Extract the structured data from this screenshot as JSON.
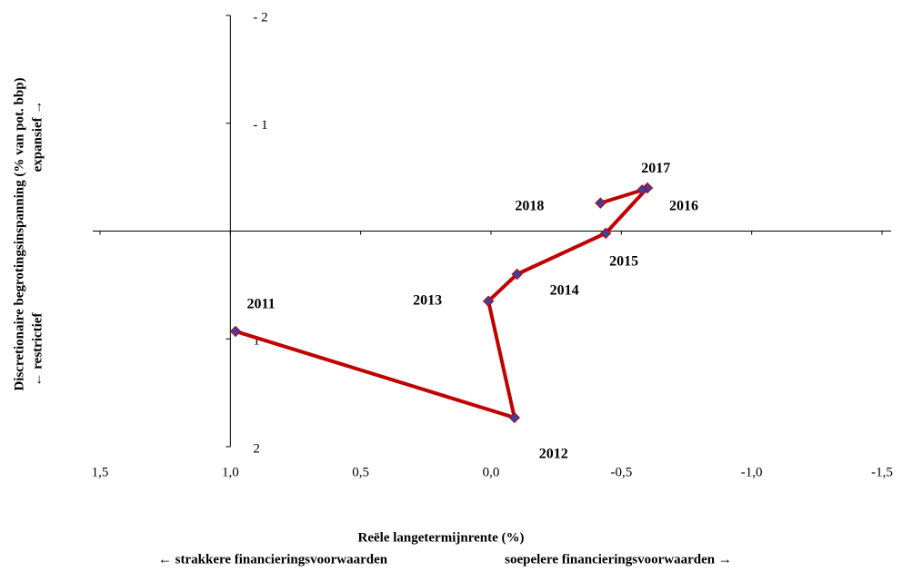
{
  "chart_data": {
    "type": "line",
    "x_title": "Reële langetermijnrente (%)",
    "x_note_left": "← strakkere financieringsvoorwaarden",
    "x_note_right": "soepelere financieringsvoorwaarden →",
    "y_title": "Discretionaire begrotingsinspanning (% van pot. bbp)",
    "y_note_top": "expansief →",
    "y_note_bottom": "← restrictief",
    "x": [
      0.98,
      -0.09,
      0.01,
      -0.1,
      -0.44,
      -0.6,
      -0.58,
      -0.42
    ],
    "values": [
      0.93,
      1.73,
      0.65,
      0.4,
      0.02,
      -0.4,
      -0.38,
      -0.26
    ],
    "point_labels": [
      "2011",
      "2012",
      "2013",
      "2014",
      "2015",
      "2016",
      "2017",
      "2018"
    ],
    "color": "#c00000",
    "marker_color": "#3f3f9f",
    "xlim": [
      1.5,
      -1.5
    ],
    "xticks": [
      {
        "value": 1.5,
        "label": "1,5"
      },
      {
        "value": 1.0,
        "label": "1,0"
      },
      {
        "value": 0.5,
        "label": "0,5"
      },
      {
        "value": 0,
        "label": "0,0"
      },
      {
        "value": -0.5,
        "label": "-0,5"
      },
      {
        "value": -1.0,
        "label": "-1,0"
      },
      {
        "value": -1.5,
        "label": "-1,5"
      }
    ],
    "ylim": [
      2,
      -2
    ],
    "yticks": [
      {
        "value": -2,
        "label": "- 2"
      },
      {
        "value": -1,
        "label": "- 1"
      },
      1,
      2
    ],
    "y_axis_crosses_x": 1,
    "x_axis_crosses_y": 0
  }
}
